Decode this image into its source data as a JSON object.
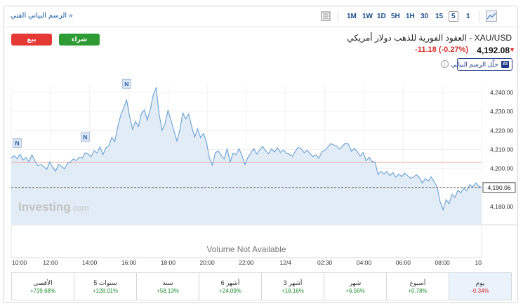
{
  "topbar": {
    "tech_chart_link": "الرسم البياني الفني »",
    "timeframes": [
      "1M",
      "1W",
      "1D",
      "5H",
      "1H",
      "30",
      "15",
      "5",
      "1"
    ],
    "active_timeframe": "5"
  },
  "actions": {
    "sell_label": "بيع",
    "buy_label": "شراء",
    "sell_color": "#e53935",
    "buy_color": "#2e9b35"
  },
  "instrument": {
    "title": "XAU/USD - العقود الفورية للذهب دولار أمريكي",
    "price": "4,192.08",
    "change": "-11.18",
    "change_pct": "(-0.27%)",
    "direction": "down",
    "ai_button_label": "حلّل الرسم البياني",
    "ai_icon_label": "AI",
    "info_icon": "i"
  },
  "chart_data": {
    "type": "area",
    "yticks": [
      4180,
      4190,
      4200,
      4210,
      4220,
      4230,
      4240
    ],
    "ytick_labels": [
      "4,180.00",
      "4,190.00",
      "4,200.00",
      "4,210.00",
      "4,220.00",
      "4,230.00",
      "4,240.00"
    ],
    "xticks": [
      "10:00",
      "12:00",
      "14:00",
      "16:00",
      "18:00",
      "20:00",
      "22:00",
      "12/4",
      "02:30",
      "04:00",
      "06:00",
      "08:00",
      "10"
    ],
    "ylim": [
      4170.5,
      4244
    ],
    "current_price_label": "4,190.06",
    "current_price": 4190.06,
    "reference_price": 4203.24,
    "watermark": "Investing",
    "watermark_suffix": ".com",
    "volume_note": "Volume Not Available",
    "news_marker": "N",
    "news_markers_at": [
      2,
      25,
      39
    ],
    "line_color": "#6aa0d4",
    "fill_color": "#e2ecf6",
    "reference_line_color": "#e7a39a",
    "series": [
      4205.5,
      4206.8,
      4205.2,
      4207.5,
      4204.5,
      4205.9,
      4203.6,
      4207.2,
      4204.1,
      4201.5,
      4202.2,
      4201.0,
      4199.6,
      4203.4,
      4200.8,
      4198.6,
      4202.3,
      4201.2,
      4199.9,
      4202.7,
      4203.5,
      4205.1,
      4204.2,
      4206.0,
      4205.4,
      4208.3,
      4207.6,
      4206.2,
      4209.4,
      4208.1,
      4211.4,
      4207.3,
      4210.8,
      4212.1,
      4216.4,
      4214.2,
      4221.8,
      4228.0,
      4231.6,
      4236.2,
      4227.5,
      4220.6,
      4224.8,
      4222.1,
      4228.9,
      4230.8,
      4225.5,
      4231.1,
      4238.7,
      4242.4,
      4228.4,
      4220.1,
      4223.6,
      4230.7,
      4225.4,
      4219.8,
      4214.5,
      4220.3,
      4229.2,
      4226.1,
      4228.6,
      4222.2,
      4216.5,
      4220.9,
      4216.3,
      4218.4,
      4213.9,
      4205.5,
      4201.8,
      4208.4,
      4209.2,
      4206.9,
      4205.1,
      4210.3,
      4203.5,
      4208.1,
      4207.3,
      4210.4,
      4206.9,
      4202.1,
      4205.8,
      4208.2,
      4210.5,
      4207.6,
      4209.8,
      4211.6,
      4209.3,
      4207.8,
      4210.4,
      4208.7,
      4210.9,
      4208.5,
      4209.8,
      4208.1,
      4207.5,
      4206.4,
      4209.0,
      4211.2,
      4210.4,
      4208.3,
      4209.6,
      4207.9,
      4206.3,
      4207.2,
      4205.4,
      4208.8,
      4209.6,
      4211.2,
      4213.1,
      4212.4,
      4211.7,
      4210.2,
      4211.8,
      4213.4,
      4212.9,
      4209.1,
      4210.6,
      4208.8,
      4206.5,
      4208.4,
      4204.1,
      4205.9,
      4203.7,
      4203.4,
      4196.8,
      4198.6,
      4197.1,
      4198.5,
      4196.3,
      4197.9,
      4195.5,
      4197.1,
      4195.8,
      4197.7,
      4196.2,
      4194.9,
      4195.6,
      4196.8,
      4195.1,
      4192.4,
      4194.8,
      4193.5,
      4195.6,
      4193.1,
      4190.2,
      4182.5,
      4178.4,
      4183.7,
      4181.6,
      4186.5,
      4184.8,
      4188.6,
      4187.3,
      4189.7,
      4188.4,
      4191.6,
      4190.3,
      4192.5,
      4190.8,
      4190.06
    ]
  },
  "performance": [
    {
      "label": "يوم",
      "value": "-0.34%",
      "dir": "down"
    },
    {
      "label": "أسبوع",
      "value": "+0.78%",
      "dir": "up"
    },
    {
      "label": "شهر",
      "value": "+6.56%",
      "dir": "up"
    },
    {
      "label": "3 أشهر",
      "value": "+18.16%",
      "dir": "up"
    },
    {
      "label": "6 أشهر",
      "value": "+24.09%",
      "dir": "up"
    },
    {
      "label": "سنة",
      "value": "+58.13%",
      "dir": "up"
    },
    {
      "label": "5 سنوات",
      "value": "+128.01%",
      "dir": "up"
    },
    {
      "label": "الأقصى",
      "value": "+739.68%",
      "dir": "up"
    }
  ]
}
